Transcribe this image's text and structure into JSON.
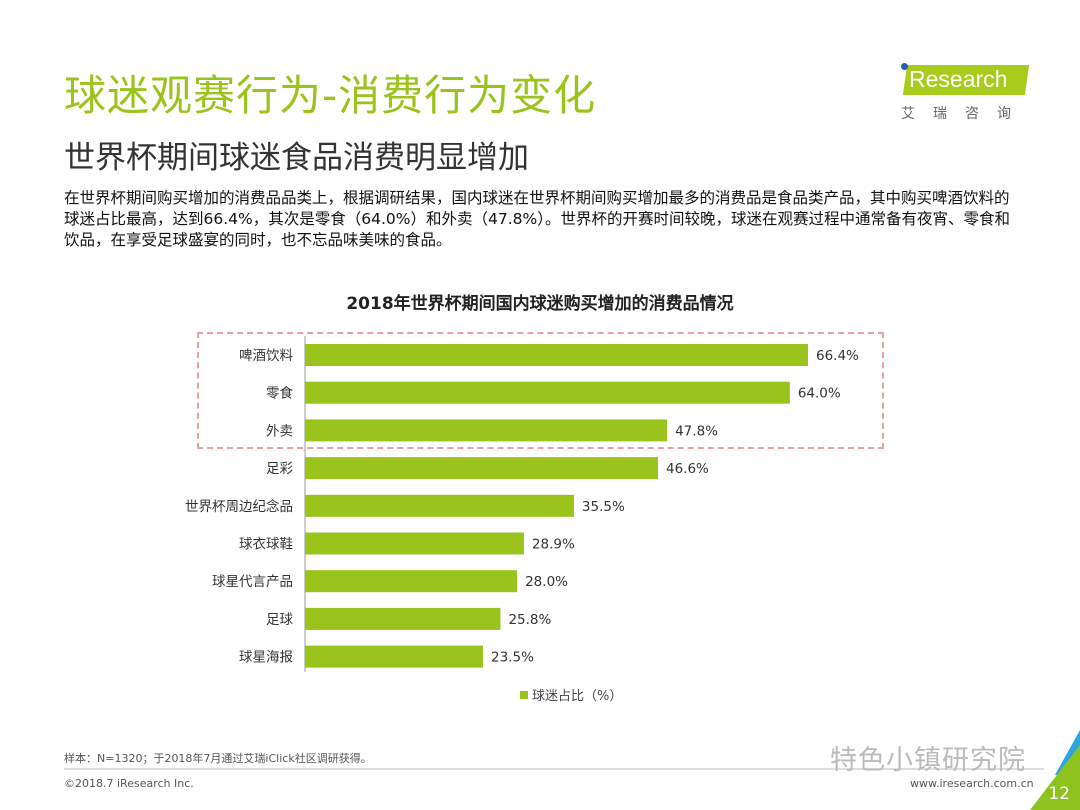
{
  "header": {
    "title": "球迷观赛行为-消费行为变化",
    "subtitle": "世界杯期间球迷食品消费明显增加",
    "description": "在世界杯期间购买增加的消费品品类上，根据调研结果，国内球迷在世界杯期间购买增加最多的消费品是食品类产品，其中购买啤酒饮料的球迷占比最高，达到66.4%，其次是零食（64.0%）和外卖（47.8%）。世界杯的开赛时间较晚，球迷在观赛过程中通常备有夜宵、零食和饮品，在享受足球盛宴的同时，也不忘品味美味的食品。"
  },
  "logo": {
    "name": "iResearch",
    "cn": "艾瑞咨询"
  },
  "chart_data": {
    "type": "bar",
    "orientation": "horizontal",
    "title": "2018年世界杯期间国内球迷购买增加的消费品情况",
    "categories": [
      "啤酒饮料",
      "零食",
      "外卖",
      "足彩",
      "世界杯周边纪念品",
      "球衣球鞋",
      "球星代言产品",
      "足球",
      "球星海报"
    ],
    "series": [
      {
        "name": "球迷占比（%）",
        "values": [
          66.4,
          64.0,
          47.8,
          46.6,
          35.5,
          28.9,
          28.0,
          25.8,
          23.5
        ]
      }
    ],
    "value_labels": [
      "66.4%",
      "64.0%",
      "47.8%",
      "46.6%",
      "35.5%",
      "28.9%",
      "28.0%",
      "25.8%",
      "23.5%"
    ],
    "xlim": [
      0,
      66.4
    ],
    "grid": false,
    "legend": "bottom",
    "highlighted_categories": [
      "啤酒饮料",
      "零食",
      "外卖"
    ],
    "colors": {
      "bar": "#9ac31c",
      "highlight_border": "#e8a0a0"
    }
  },
  "footer": {
    "note": "样本：N=1320；于2018年7月通过艾瑞iClick社区调研获得。",
    "copyright": "©2018.7 iResearch Inc.",
    "site": "www.iresearch.com.cn",
    "watermark": "特色小镇研究院",
    "page": "12"
  },
  "colors": {
    "accent": "#9ac31c",
    "corner_green": "#8dc21f",
    "corner_blue": "#2aa7e0"
  }
}
